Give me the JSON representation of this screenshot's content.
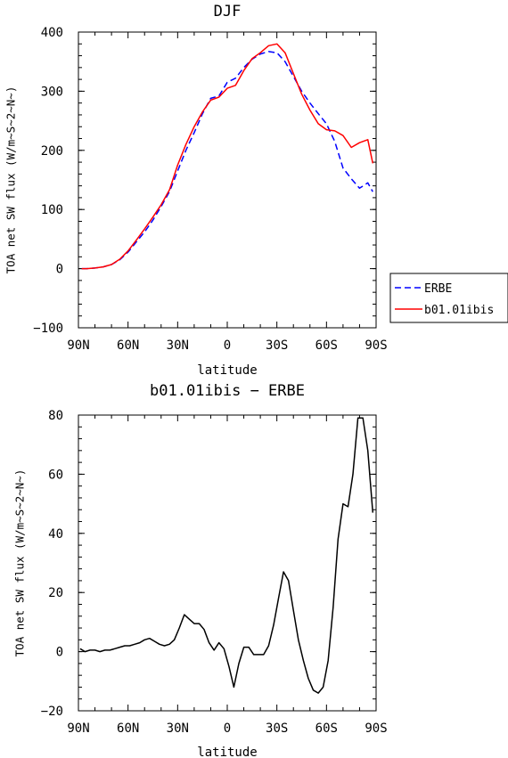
{
  "chart_data": [
    {
      "type": "line",
      "title": "DJF",
      "xlabel": "latitude",
      "ylabel": "TOA net SW flux (W/m~S~2~N~)",
      "xlim": [
        90,
        -90
      ],
      "ylim": [
        -100,
        400
      ],
      "x_ticks": [
        90,
        60,
        30,
        0,
        -30,
        -60,
        -90
      ],
      "x_tick_labels": [
        "90N",
        "60N",
        "30N",
        "0",
        "30S",
        "60S",
        "90S"
      ],
      "y_ticks": [
        -100,
        0,
        100,
        200,
        300,
        400
      ],
      "y_tick_labels": [
        "−100",
        "0",
        "100",
        "200",
        "300",
        "400"
      ],
      "legend": {
        "placement": "outside-right"
      },
      "series": [
        {
          "name": "ERBE",
          "color": "#0000ff",
          "dash": "dashed",
          "x": [
            88,
            85,
            80,
            75,
            70,
            65,
            60,
            55,
            50,
            45,
            40,
            35,
            30,
            25,
            20,
            15,
            10,
            5,
            0,
            -5,
            -10,
            -15,
            -20,
            -25,
            -30,
            -35,
            -40,
            -45,
            -50,
            -55,
            -60,
            -65,
            -70,
            -75,
            -80,
            -85,
            -88
          ],
          "y": [
            0,
            0,
            1,
            3,
            7,
            15,
            28,
            45,
            62,
            82,
            105,
            130,
            165,
            200,
            230,
            262,
            288,
            292,
            315,
            322,
            340,
            354,
            363,
            367,
            365,
            350,
            325,
            300,
            280,
            262,
            245,
            215,
            170,
            152,
            136,
            145,
            130
          ]
        },
        {
          "name": "b01.01ibis",
          "color": "#ff0000",
          "dash": "solid",
          "x": [
            88,
            85,
            80,
            75,
            70,
            65,
            60,
            55,
            50,
            45,
            40,
            35,
            30,
            25,
            20,
            15,
            10,
            5,
            0,
            -5,
            -10,
            -15,
            -20,
            -25,
            -30,
            -35,
            -40,
            -45,
            -50,
            -55,
            -60,
            -65,
            -70,
            -75,
            -80,
            -85,
            -88
          ],
          "y": [
            0,
            0,
            1,
            3,
            7,
            16,
            30,
            48,
            67,
            87,
            108,
            133,
            175,
            210,
            240,
            265,
            285,
            290,
            305,
            310,
            335,
            355,
            365,
            377,
            380,
            365,
            330,
            295,
            268,
            245,
            235,
            233,
            225,
            205,
            213,
            218,
            178
          ]
        }
      ]
    },
    {
      "type": "line",
      "title": "b01.01ibis − ERBE",
      "xlabel": "latitude",
      "ylabel": "TOA net SW flux (W/m~S~2~N~)",
      "xlim": [
        90,
        -90
      ],
      "ylim": [
        -20,
        80
      ],
      "x_ticks": [
        90,
        60,
        30,
        0,
        -30,
        -60,
        -90
      ],
      "x_tick_labels": [
        "90N",
        "60N",
        "30N",
        "0",
        "30S",
        "60S",
        "90S"
      ],
      "y_ticks": [
        -20,
        0,
        20,
        40,
        60,
        80
      ],
      "y_tick_labels": [
        "−20",
        "0",
        "20",
        "40",
        "60",
        "80"
      ],
      "series": [
        {
          "color": "#000000",
          "dash": "solid",
          "x": [
            89,
            86,
            83,
            80,
            77,
            74,
            71,
            68,
            65,
            62,
            59,
            56,
            53,
            50,
            47,
            44,
            41,
            38,
            35,
            32,
            29,
            26,
            23,
            20,
            17,
            14,
            11,
            8,
            5,
            2,
            -1,
            -4,
            -7,
            -10,
            -13,
            -16,
            -19,
            -22,
            -25,
            -28,
            -31,
            -34,
            -37,
            -40,
            -43,
            -46,
            -49,
            -52,
            -55,
            -58,
            -61,
            -64,
            -67,
            -70,
            -73,
            -76,
            -79,
            -82,
            -85,
            -88
          ],
          "y": [
            1,
            0,
            0.5,
            0.5,
            0,
            0.5,
            0.5,
            1,
            1.5,
            2,
            2,
            2.5,
            3,
            4,
            4.5,
            3.5,
            2.5,
            2,
            2.5,
            4,
            8,
            12.5,
            11,
            9.5,
            9.5,
            7.5,
            3,
            0.5,
            3,
            1,
            -5,
            -12,
            -4,
            1.5,
            1.5,
            -1,
            -1,
            -1,
            2,
            9,
            18,
            27,
            24,
            14,
            4,
            -3,
            -9,
            -13,
            -14,
            -12,
            -3,
            15,
            38,
            50,
            49,
            60,
            79,
            79,
            68,
            47
          ]
        }
      ]
    }
  ]
}
